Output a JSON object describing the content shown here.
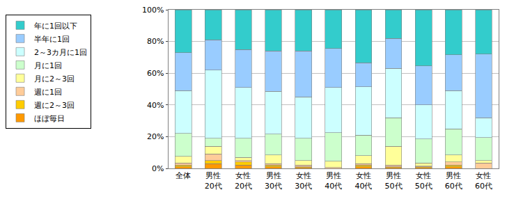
{
  "chart_data": {
    "type": "bar",
    "stacked": true,
    "grid": true,
    "legend": "left",
    "categories": [
      "全体",
      "男性 20代",
      "女性 20代",
      "男性 30代",
      "女性 30代",
      "男性 40代",
      "女性 40代",
      "男性 50代",
      "女性 50代",
      "男性 60代",
      "女性 60代"
    ],
    "ylim": [
      0,
      100
    ],
    "yticks": [
      {
        "value": 0,
        "label": "0%"
      },
      {
        "value": 20,
        "label": "20%"
      },
      {
        "value": 40,
        "label": "40%"
      },
      {
        "value": 60,
        "label": "60%"
      },
      {
        "value": 80,
        "label": "80%"
      },
      {
        "value": 100,
        "label": "100%"
      }
    ],
    "series": [
      {
        "name": "ほぼ毎日",
        "color": "#ff9900",
        "values": [
          1,
          3,
          2,
          1,
          0.5,
          0,
          1,
          0.5,
          0.5,
          1,
          0
        ]
      },
      {
        "name": "週に2～3回",
        "color": "#ffcc00",
        "values": [
          1,
          2,
          2,
          1,
          0.5,
          0,
          1,
          0.5,
          0.5,
          1,
          0
        ]
      },
      {
        "name": "週に1回",
        "color": "#ffcc99",
        "values": [
          1.5,
          4,
          1,
          1,
          1,
          0.5,
          1,
          1,
          0.5,
          2,
          3.5
        ]
      },
      {
        "name": "月に2～3回",
        "color": "#ffff99",
        "values": [
          4,
          5,
          2,
          5.5,
          3,
          4,
          5,
          12,
          2,
          4.5,
          1.5
        ]
      },
      {
        "name": "月に1回",
        "color": "#ccffcc",
        "values": [
          14.5,
          5,
          12,
          13,
          14,
          18,
          13,
          18,
          15,
          16.5,
          14.5
        ]
      },
      {
        "name": "2～3カ月に1回",
        "color": "#ccffff",
        "values": [
          27,
          43,
          32,
          27,
          26,
          28.5,
          30.5,
          31,
          21.5,
          24,
          12.5
        ]
      },
      {
        "name": "半年に1回",
        "color": "#99ccff",
        "values": [
          24,
          19,
          24,
          25.5,
          29,
          24.5,
          15,
          19,
          24.5,
          22.5,
          40
        ]
      },
      {
        "name": "年に1回以下",
        "color": "#33cccc",
        "values": [
          27,
          19,
          25,
          26,
          26,
          24.5,
          33.5,
          18,
          35.5,
          28.5,
          28
        ]
      }
    ]
  }
}
